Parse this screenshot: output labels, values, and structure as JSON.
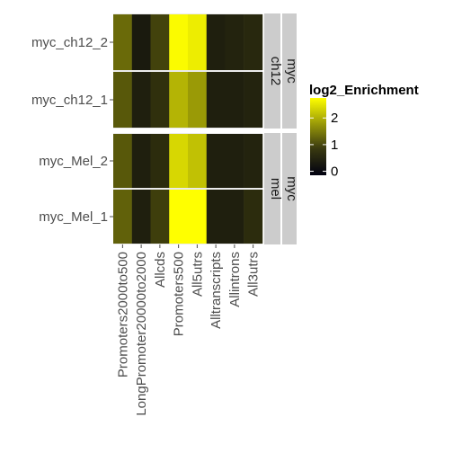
{
  "chart_data": {
    "type": "heatmap",
    "title": "",
    "xlabel": "",
    "ylabel": "",
    "categories": [
      "Promoters2000to500",
      "LongPromoter20000to2000",
      "Allcds",
      "Promoters500",
      "All5utrs",
      "Alltranscripts",
      "Allintrons",
      "All3utrs"
    ],
    "legend": {
      "title": "log2_Enrichment",
      "ticks": [
        0,
        1,
        2
      ],
      "range": [
        -0.15,
        2.75
      ],
      "colors": {
        "low": "#000010",
        "high": "#ffff00"
      }
    },
    "panels": [
      {
        "strip_labels": [
          "myc",
          "ch12"
        ],
        "rows": [
          {
            "name": "myc_ch12_2",
            "values": [
              1.05,
              0.15,
              0.6,
              2.7,
              2.55,
              0.2,
              0.25,
              0.3
            ]
          },
          {
            "name": "myc_ch12_1",
            "values": [
              0.85,
              0.2,
              0.4,
              1.9,
              1.6,
              0.2,
              0.2,
              0.25
            ]
          }
        ]
      },
      {
        "strip_labels": [
          "myc",
          "mel"
        ],
        "rows": [
          {
            "name": "myc_Mel_2",
            "values": [
              0.85,
              0.2,
              0.35,
              2.3,
              2.05,
              0.2,
              0.2,
              0.25
            ]
          },
          {
            "name": "myc_Mel_1",
            "values": [
              0.95,
              0.2,
              0.55,
              2.75,
              2.75,
              0.2,
              0.2,
              0.35
            ]
          }
        ]
      }
    ]
  }
}
